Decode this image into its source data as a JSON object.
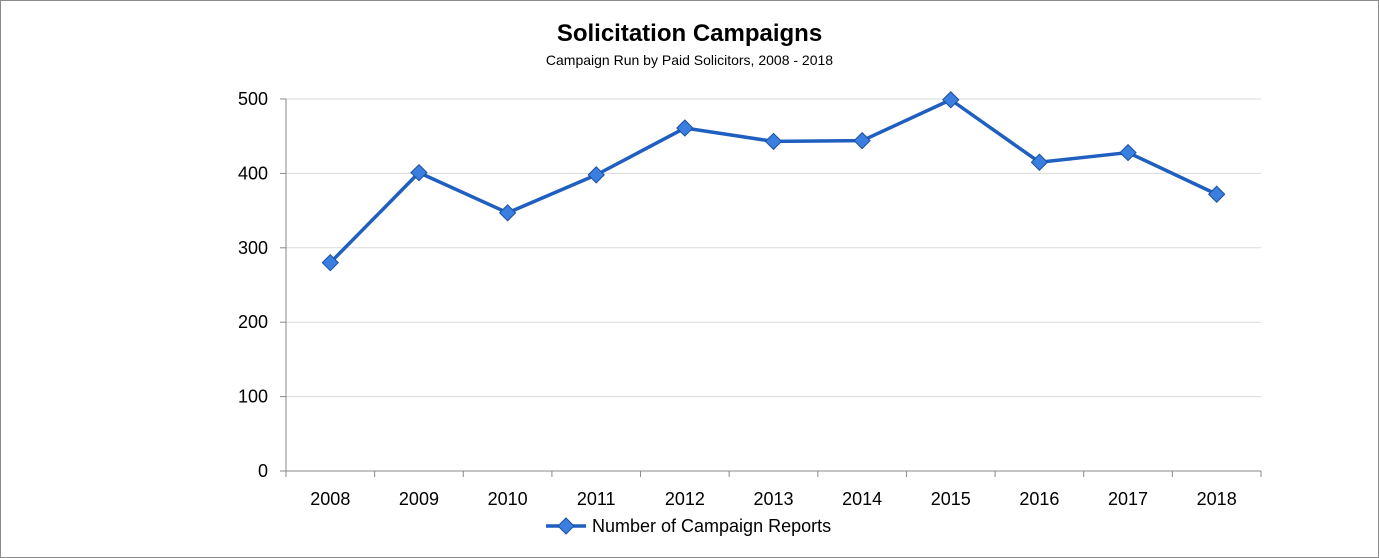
{
  "chart_data": {
    "type": "line",
    "title": "Solicitation Campaigns",
    "subtitle": "Campaign Run by Paid Solicitors, 2008 - 2018",
    "xlabel": "",
    "ylabel": "",
    "categories": [
      "2008",
      "2009",
      "2010",
      "2011",
      "2012",
      "2013",
      "2014",
      "2015",
      "2016",
      "2017",
      "2018"
    ],
    "series": [
      {
        "name": "Number of Campaign Reports",
        "values": [
          280,
          401,
          347,
          398,
          461,
          443,
          444,
          499,
          415,
          428,
          372
        ],
        "color": "#1f5fbf",
        "marker": "diamond"
      }
    ],
    "ylim": [
      0,
      500
    ],
    "yticks": [
      0,
      100,
      200,
      300,
      400,
      500
    ],
    "grid": true,
    "legend": "bottom"
  }
}
